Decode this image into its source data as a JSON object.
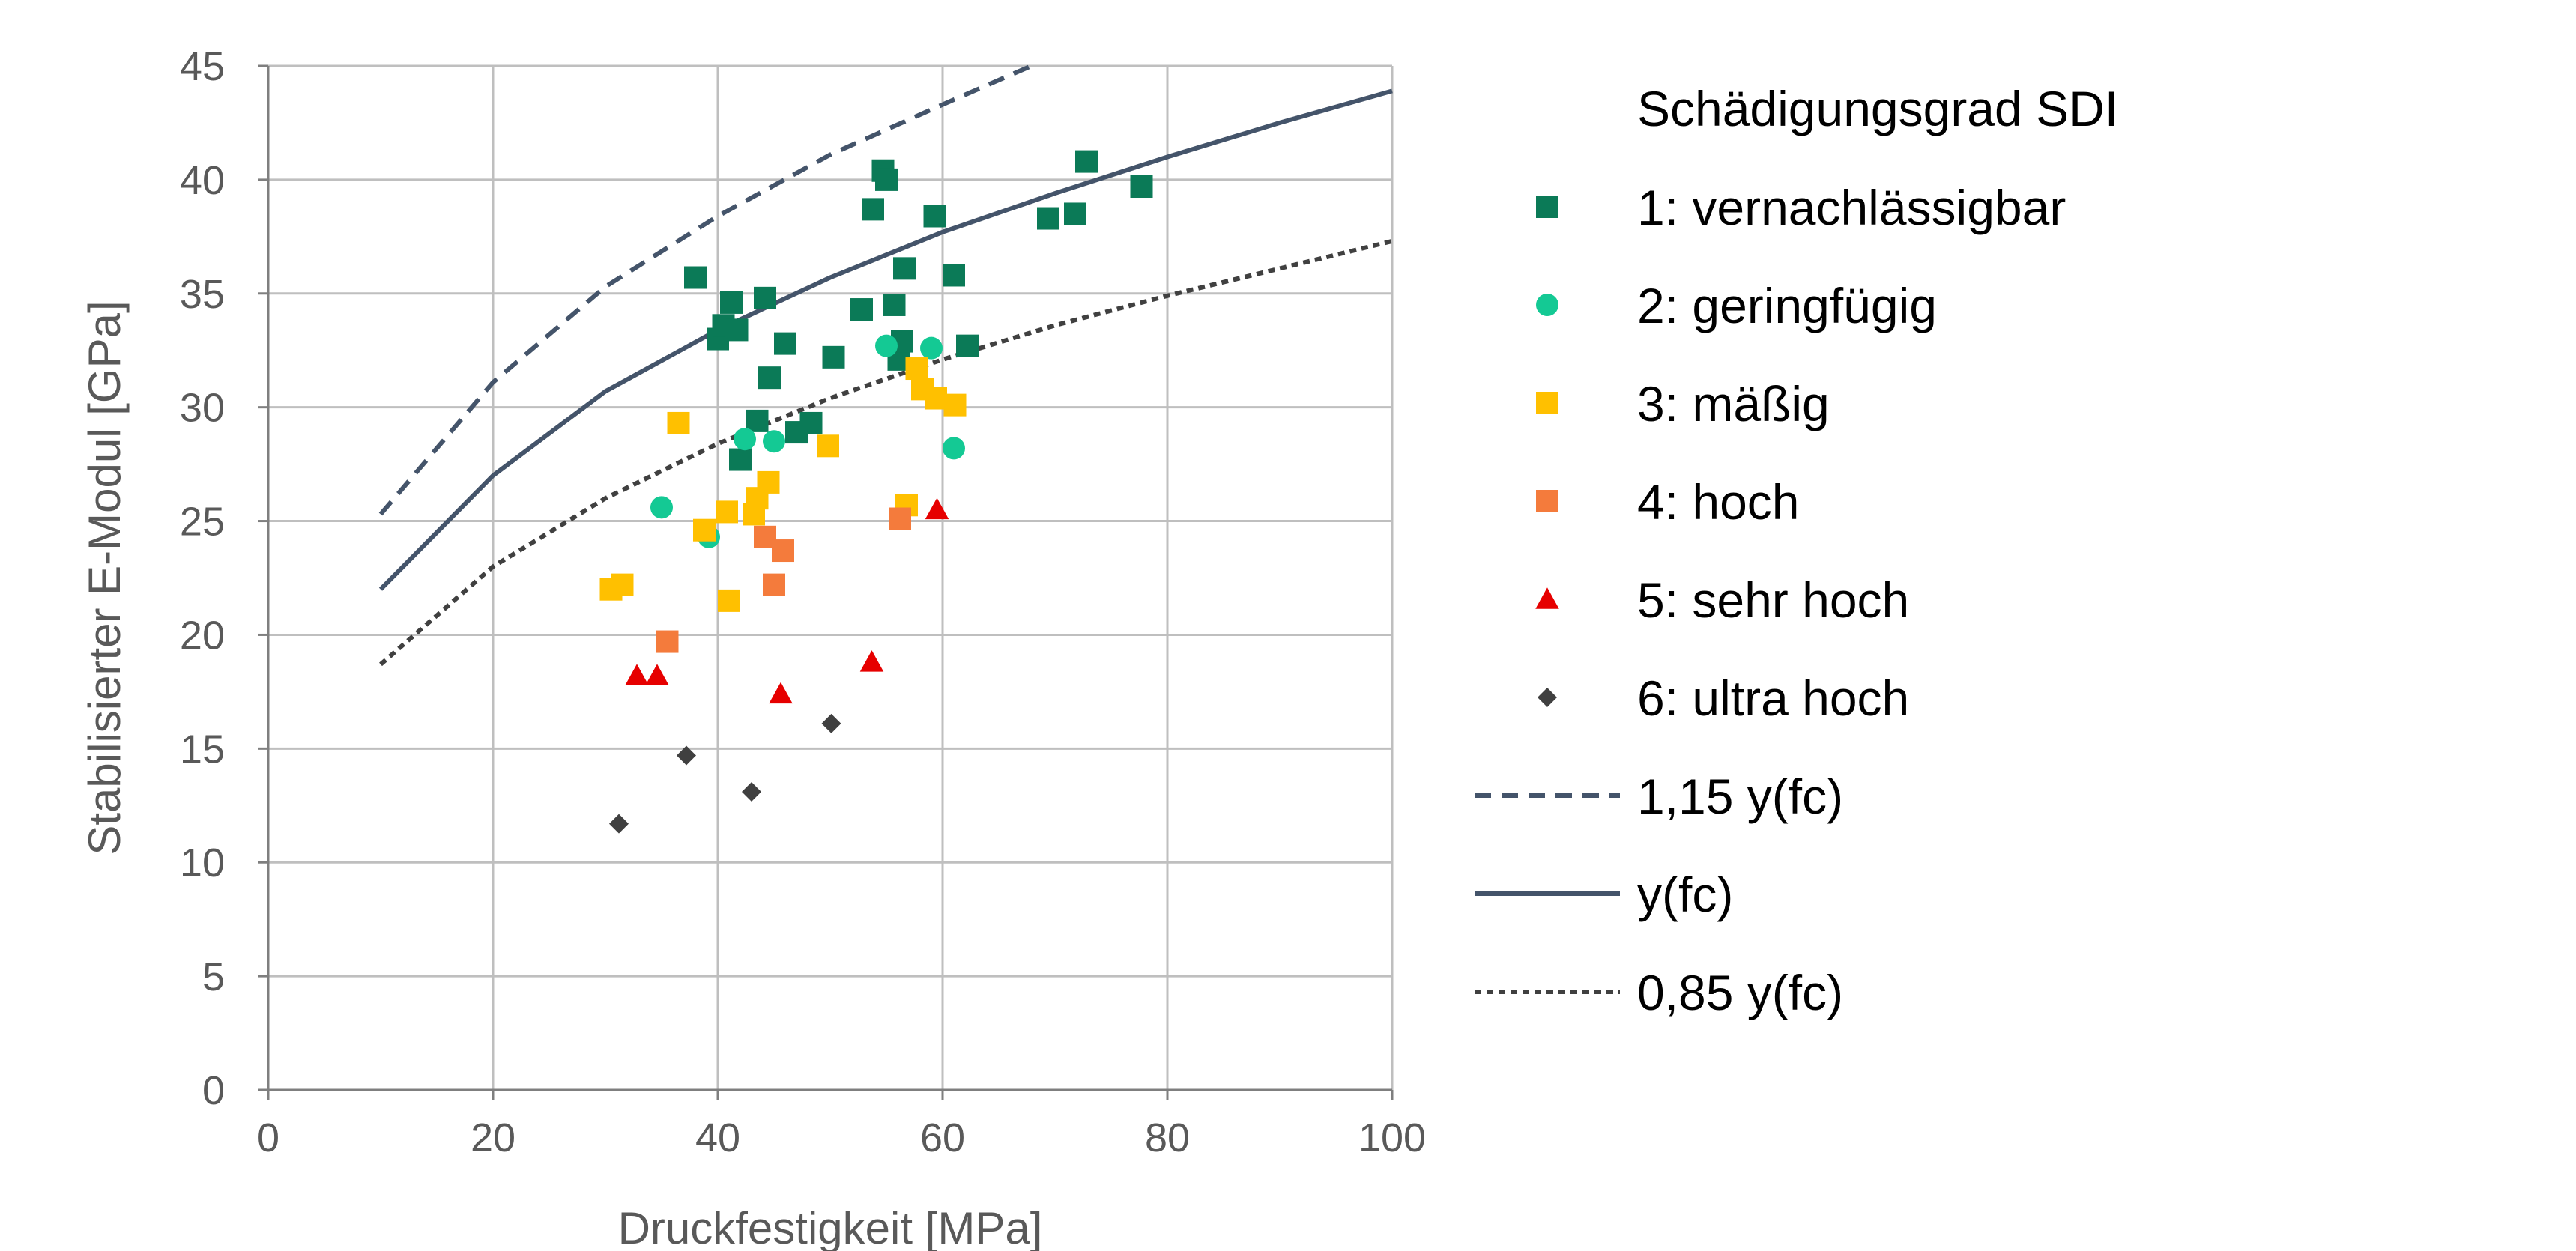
{
  "chart_data": {
    "type": "scatter",
    "xlabel": "Druckfestigkeit [MPa]",
    "ylabel": "Stabilisierter E-Modul [GPa]",
    "xlim": [
      0,
      100
    ],
    "ylim": [
      0,
      45
    ],
    "x_ticks": [
      "0",
      "20",
      "40",
      "60",
      "80",
      "100"
    ],
    "y_ticks": [
      "0",
      "5",
      "10",
      "15",
      "20",
      "25",
      "30",
      "35",
      "40",
      "45"
    ],
    "grid": true,
    "legend_position": "right",
    "legend_title": "Schädigungsgrad SDI",
    "series": [
      {
        "name": "1: vernachlässigbar",
        "marker": "square",
        "color": "#0b7a57",
        "points": [
          [
            38,
            35.7
          ],
          [
            40,
            33
          ],
          [
            40.5,
            33.6
          ],
          [
            41.2,
            34.6
          ],
          [
            41.7,
            33.4
          ],
          [
            42,
            27.7
          ],
          [
            43.5,
            29.4
          ],
          [
            44.2,
            34.8
          ],
          [
            44.6,
            31.3
          ],
          [
            46,
            32.8
          ],
          [
            47,
            28.9
          ],
          [
            48.3,
            29.3
          ],
          [
            50.3,
            32.2
          ],
          [
            52.8,
            34.3
          ],
          [
            53.8,
            38.7
          ],
          [
            54.7,
            40.4
          ],
          [
            55,
            40
          ],
          [
            55.7,
            34.5
          ],
          [
            56.1,
            32.1
          ],
          [
            56.4,
            32.9
          ],
          [
            56.6,
            36.1
          ],
          [
            59.3,
            38.4
          ],
          [
            61,
            35.8
          ],
          [
            62.2,
            32.7
          ],
          [
            69.4,
            38.3
          ],
          [
            71.8,
            38.5
          ],
          [
            72.8,
            40.8
          ],
          [
            77.7,
            39.7
          ]
        ]
      },
      {
        "name": "2: geringfügig",
        "marker": "circle",
        "color": "#14c994",
        "points": [
          [
            35,
            25.6
          ],
          [
            39.2,
            24.3
          ],
          [
            42.4,
            28.6
          ],
          [
            45,
            28.5
          ],
          [
            55,
            32.7
          ],
          [
            59,
            32.6
          ],
          [
            61,
            28.2
          ]
        ]
      },
      {
        "name": "3: mäßig",
        "marker": "square",
        "color": "#ffc000",
        "points": [
          [
            30.5,
            22
          ],
          [
            31.5,
            22.2
          ],
          [
            36.5,
            29.3
          ],
          [
            38.8,
            24.6
          ],
          [
            40.8,
            25.4
          ],
          [
            41,
            21.5
          ],
          [
            43.2,
            25.3
          ],
          [
            43.5,
            26
          ],
          [
            44.5,
            26.7
          ],
          [
            49.8,
            28.3
          ],
          [
            56.8,
            25.7
          ],
          [
            57.7,
            31.7
          ],
          [
            58.2,
            30.8
          ],
          [
            59.4,
            30.4
          ],
          [
            61.1,
            30.1
          ]
        ]
      },
      {
        "name": "4: hoch",
        "marker": "square",
        "color": "#f47b3c",
        "points": [
          [
            35.5,
            19.7
          ],
          [
            44.2,
            24.3
          ],
          [
            45,
            22.2
          ],
          [
            45.8,
            23.7
          ],
          [
            56.2,
            25.1
          ]
        ]
      },
      {
        "name": "5: sehr hoch",
        "marker": "triangle",
        "color": "#e60000",
        "points": [
          [
            32.8,
            18.2
          ],
          [
            34.6,
            18.2
          ],
          [
            45.6,
            17.4
          ],
          [
            53.7,
            18.8
          ],
          [
            59.5,
            25.5
          ]
        ]
      },
      {
        "name": "6: ultra hoch",
        "marker": "diamond",
        "color": "#404040",
        "points": [
          [
            31.2,
            11.7
          ],
          [
            37.2,
            14.7
          ],
          [
            43,
            13.1
          ],
          [
            50.1,
            16.1
          ]
        ]
      },
      {
        "name": "1,15 y(fc)",
        "marker": "dashed-line",
        "color": "#44546a",
        "points": [
          [
            10,
            25.3
          ],
          [
            20,
            31.1
          ],
          [
            30,
            35.3
          ],
          [
            40,
            38.4
          ],
          [
            50,
            41.1
          ],
          [
            60,
            43.3
          ],
          [
            67.9,
            45
          ]
        ]
      },
      {
        "name": "y(fc)",
        "marker": "solid-line",
        "color": "#44546a",
        "points": [
          [
            10,
            22
          ],
          [
            20,
            27
          ],
          [
            30,
            30.7
          ],
          [
            40,
            33.4
          ],
          [
            50,
            35.7
          ],
          [
            60,
            37.7
          ],
          [
            70,
            39.4
          ],
          [
            80,
            41
          ],
          [
            90,
            42.5
          ],
          [
            100,
            43.9
          ]
        ]
      },
      {
        "name": "0,85 y(fc)",
        "marker": "dotted-line",
        "color": "#404040",
        "points": [
          [
            10,
            18.7
          ],
          [
            20,
            23
          ],
          [
            30,
            26
          ],
          [
            40,
            28.4
          ],
          [
            50,
            30.4
          ],
          [
            60,
            32.1
          ],
          [
            70,
            33.6
          ],
          [
            80,
            34.9
          ],
          [
            90,
            36.1
          ],
          [
            100,
            37.3
          ]
        ]
      }
    ]
  }
}
